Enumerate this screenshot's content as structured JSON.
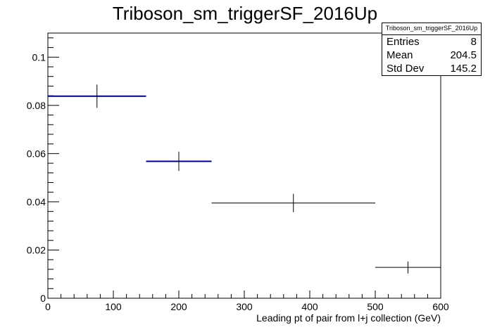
{
  "chart_data": {
    "type": "histogram",
    "title": "Triboson_sm_triggerSF_2016Up",
    "xlabel": "Leading pt of pair from l+j collection (GeV)",
    "ylabel": "",
    "xlim": [
      0,
      600
    ],
    "ylim": [
      0,
      0.11
    ],
    "x_ticks": [
      "0",
      "100",
      "200",
      "300",
      "400",
      "500",
      "600"
    ],
    "y_ticks": [
      "0",
      "0.02",
      "0.04",
      "0.06",
      "0.08",
      "0.1"
    ],
    "grid": false,
    "bins": [
      {
        "low": 0,
        "high": 150,
        "value": 0.0838,
        "err": 0.0048,
        "color": "#000080"
      },
      {
        "low": 150,
        "high": 250,
        "value": 0.0568,
        "err": 0.004,
        "color": "#000080"
      },
      {
        "low": 250,
        "high": 500,
        "value": 0.0395,
        "err": 0.0038,
        "color": "#000000"
      },
      {
        "low": 500,
        "high": 600,
        "value": 0.0128,
        "err": 0.0025,
        "color": "#000000"
      }
    ]
  },
  "stats": {
    "name": "Triboson_sm_triggerSF_2016Up",
    "rows": [
      {
        "label": "Entries",
        "value": "8"
      },
      {
        "label": "Mean",
        "value": "204.5"
      },
      {
        "label": "Std Dev",
        "value": "145.2"
      }
    ]
  }
}
